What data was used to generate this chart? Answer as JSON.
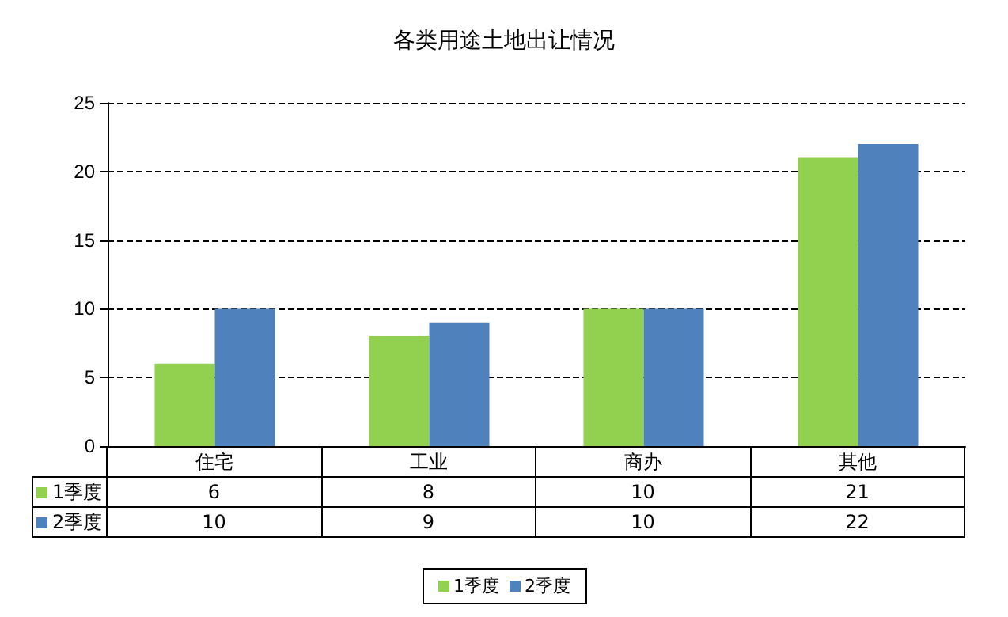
{
  "chart_data": {
    "type": "bar",
    "title": "各类用途土地出让情况",
    "categories": [
      "住宅",
      "工业",
      "商办",
      "其他"
    ],
    "series": [
      {
        "name": "1季度",
        "color": "#92d050",
        "values": [
          6,
          8,
          10,
          21
        ]
      },
      {
        "name": "2季度",
        "color": "#4f81bd",
        "values": [
          10,
          9,
          10,
          22
        ]
      }
    ],
    "ylim": [
      0,
      25
    ],
    "yticks": [
      0,
      5,
      10,
      15,
      20,
      25
    ],
    "grid": "y",
    "legend": "bottom",
    "data_labels": true
  }
}
